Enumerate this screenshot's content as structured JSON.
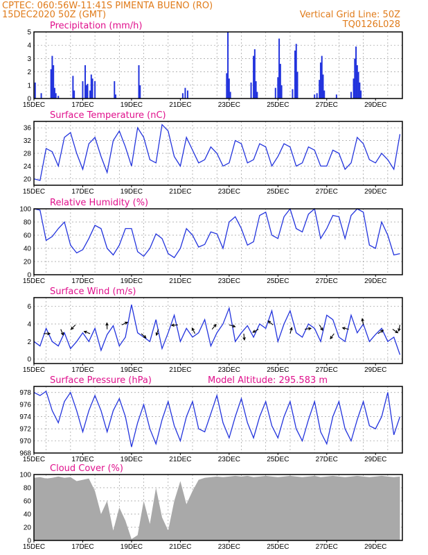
{
  "header": {
    "line1_left": "CPTEC:   060:56W-11:41S   PIMENTA BUENO (RO)",
    "line2_left": "15DEC2020 50Z (GMT)",
    "line2_right": "Vertical Grid Line: 50Z",
    "line3_right": "TQ0126L028"
  },
  "colors": {
    "header": "#e07b1a",
    "panel_title": "#e0108c",
    "series": "#2233dd",
    "cloud": "#a9a9a9"
  },
  "x_ticks": [
    "15DEC",
    "17DEC",
    "19DEC",
    "21DEC",
    "23DEC",
    "25DEC",
    "27DEC",
    "29DEC"
  ],
  "chart_data": [
    {
      "type": "bar",
      "title": "Precipitation (mm/h)",
      "ylim": [
        0,
        5
      ],
      "yticks": [
        0,
        1,
        2,
        3,
        4,
        5
      ],
      "x_days": [
        0,
        15.1
      ],
      "values": [
        [
          0.05,
          1.2
        ],
        [
          0.3,
          0.4
        ],
        [
          0.7,
          2.2
        ],
        [
          0.75,
          3.2
        ],
        [
          0.8,
          2.5
        ],
        [
          0.85,
          0.8
        ],
        [
          0.9,
          0.4
        ],
        [
          1.0,
          0.2
        ],
        [
          1.6,
          1.7
        ],
        [
          1.65,
          0.6
        ],
        [
          2.0,
          1.3
        ],
        [
          2.1,
          2.5
        ],
        [
          2.15,
          1.0
        ],
        [
          2.2,
          1.1
        ],
        [
          2.3,
          0.6
        ],
        [
          2.35,
          1.8
        ],
        [
          2.4,
          1.5
        ],
        [
          2.5,
          1.3
        ],
        [
          3.3,
          1.3
        ],
        [
          3.35,
          0.3
        ],
        [
          4.3,
          2.5
        ],
        [
          4.35,
          1.0
        ],
        [
          6.1,
          0.4
        ],
        [
          6.2,
          0.8
        ],
        [
          6.3,
          0.6
        ],
        [
          7.9,
          1.9
        ],
        [
          7.95,
          5.0
        ],
        [
          8.0,
          1.5
        ],
        [
          8.05,
          0.5
        ],
        [
          8.9,
          1.2
        ],
        [
          9.0,
          3.2
        ],
        [
          9.05,
          3.7
        ],
        [
          9.1,
          1.3
        ],
        [
          9.15,
          0.5
        ],
        [
          9.9,
          0.8
        ],
        [
          10.0,
          1.6
        ],
        [
          10.05,
          4.5
        ],
        [
          10.1,
          2.6
        ],
        [
          10.15,
          1.0
        ],
        [
          10.6,
          0.7
        ],
        [
          10.7,
          3.6
        ],
        [
          10.75,
          4.1
        ],
        [
          10.8,
          2.0
        ],
        [
          11.5,
          0.3
        ],
        [
          11.6,
          0.4
        ],
        [
          11.7,
          1.4
        ],
        [
          11.75,
          2.7
        ],
        [
          11.8,
          3.2
        ],
        [
          11.85,
          1.8
        ],
        [
          11.9,
          0.6
        ],
        [
          12.4,
          0.3
        ],
        [
          13.0,
          0.5
        ],
        [
          13.1,
          1.5
        ],
        [
          13.15,
          3.0
        ],
        [
          13.2,
          3.9
        ],
        [
          13.25,
          2.5
        ],
        [
          13.3,
          2.0
        ],
        [
          13.35,
          1.2
        ],
        [
          13.4,
          0.6
        ]
      ]
    },
    {
      "type": "line",
      "title": "Surface Temperature (nC)",
      "ylim": [
        18,
        38
      ],
      "yticks": [
        20,
        24,
        28,
        32,
        36
      ],
      "x": [
        0,
        0.25,
        0.5,
        0.75,
        1,
        1.25,
        1.5,
        1.75,
        2,
        2.25,
        2.5,
        2.75,
        3,
        3.25,
        3.5,
        3.75,
        4,
        4.25,
        4.5,
        4.75,
        5,
        5.25,
        5.5,
        5.75,
        6,
        6.25,
        6.5,
        6.75,
        7,
        7.25,
        7.5,
        7.75,
        8,
        8.25,
        8.5,
        8.75,
        9,
        9.25,
        9.5,
        9.75,
        10,
        10.25,
        10.5,
        10.75,
        11,
        11.25,
        11.5,
        11.75,
        12,
        12.25,
        12.5,
        12.75,
        13,
        13.25,
        13.5,
        13.75,
        14,
        14.25,
        14.5,
        14.75,
        15
      ],
      "values": [
        20,
        19.5,
        29.5,
        28.5,
        24,
        33,
        34.5,
        28,
        23,
        31,
        33,
        27,
        22,
        32,
        35,
        30,
        24,
        36,
        33,
        26,
        25,
        37,
        35,
        27,
        24,
        33,
        29,
        25,
        26,
        30,
        28,
        24,
        25,
        32,
        31,
        25,
        26,
        31,
        30,
        24,
        27,
        31,
        30,
        24,
        25,
        30,
        29,
        24,
        24,
        29,
        28,
        23,
        25,
        33,
        31,
        26,
        25,
        28,
        26,
        23,
        34
      ]
    },
    {
      "type": "line",
      "title": "Relative Humidity (%)",
      "ylim": [
        0,
        100
      ],
      "yticks": [
        0,
        20,
        40,
        60,
        80,
        100
      ],
      "x": [
        0,
        0.25,
        0.5,
        0.75,
        1,
        1.25,
        1.5,
        1.75,
        2,
        2.25,
        2.5,
        2.75,
        3,
        3.25,
        3.5,
        3.75,
        4,
        4.25,
        4.5,
        4.75,
        5,
        5.25,
        5.5,
        5.75,
        6,
        6.25,
        6.5,
        6.75,
        7,
        7.25,
        7.5,
        7.75,
        8,
        8.25,
        8.5,
        8.75,
        9,
        9.25,
        9.5,
        9.75,
        10,
        10.25,
        10.5,
        10.75,
        11,
        11.25,
        11.5,
        11.75,
        12,
        12.25,
        12.5,
        12.75,
        13,
        13.25,
        13.5,
        13.75,
        14,
        14.25,
        14.5,
        14.75,
        15
      ],
      "values": [
        100,
        98,
        52,
        58,
        70,
        80,
        45,
        33,
        38,
        55,
        75,
        70,
        40,
        30,
        45,
        70,
        70,
        35,
        28,
        40,
        62,
        55,
        32,
        26,
        40,
        70,
        60,
        42,
        46,
        65,
        62,
        40,
        80,
        88,
        70,
        45,
        50,
        90,
        95,
        60,
        55,
        88,
        100,
        70,
        65,
        92,
        100,
        55,
        70,
        90,
        88,
        55,
        90,
        100,
        95,
        45,
        40,
        80,
        60,
        30,
        32
      ]
    },
    {
      "type": "line",
      "title": "Surface Wind (m/s)",
      "ylim": [
        -0.5,
        7
      ],
      "yticks": [
        0,
        2,
        4,
        6
      ],
      "x": [
        0,
        0.25,
        0.5,
        0.75,
        1,
        1.25,
        1.5,
        1.75,
        2,
        2.25,
        2.5,
        2.75,
        3,
        3.25,
        3.5,
        3.75,
        4,
        4.25,
        4.5,
        4.75,
        5,
        5.25,
        5.5,
        5.75,
        6,
        6.25,
        6.5,
        6.75,
        7,
        7.25,
        7.5,
        7.75,
        8,
        8.25,
        8.5,
        8.75,
        9,
        9.25,
        9.5,
        9.75,
        10,
        10.25,
        10.5,
        10.75,
        11,
        11.25,
        11.5,
        11.75,
        12,
        12.25,
        12.5,
        12.75,
        13,
        13.25,
        13.5,
        13.75,
        14,
        14.25,
        14.5,
        14.75,
        15
      ],
      "values": [
        2,
        1.5,
        3.5,
        2,
        1.5,
        3,
        1.2,
        2,
        3,
        2,
        3.5,
        1,
        2.8,
        3.8,
        1.5,
        2.5,
        6.2,
        3,
        2.5,
        2,
        4.5,
        1.2,
        3,
        5,
        2,
        3.5,
        2.5,
        3,
        4.5,
        1.5,
        3,
        4,
        5.8,
        2,
        3,
        3.8,
        2.5,
        4,
        3.5,
        5.5,
        2,
        4,
        5.5,
        3,
        2.5,
        4,
        3.5,
        2,
        5,
        4.5,
        2.5,
        2,
        5,
        3,
        4,
        2,
        2.8,
        3.5,
        2,
        2.5,
        0.5
      ],
      "wind_arrows_days": [
        0.4,
        1.1,
        1.7,
        2.3,
        3.0,
        3.6,
        4.4,
        5.1,
        5.9,
        6.6,
        7.3,
        8.0,
        8.6,
        9.2,
        9.8,
        10.5,
        11.1,
        11.7,
        12.3,
        12.9,
        13.5,
        14.1,
        14.7,
        15.0
      ]
    },
    {
      "type": "line",
      "title": "Surface Pressure (hPa)",
      "annotation": "Model Altitude: 295.583  m",
      "ylim": [
        968,
        979
      ],
      "yticks": [
        968,
        970,
        972,
        974,
        976,
        978
      ],
      "x": [
        0,
        0.25,
        0.5,
        0.75,
        1,
        1.25,
        1.5,
        1.75,
        2,
        2.25,
        2.5,
        2.75,
        3,
        3.25,
        3.5,
        3.75,
        4,
        4.25,
        4.5,
        4.75,
        5,
        5.25,
        5.5,
        5.75,
        6,
        6.25,
        6.5,
        6.75,
        7,
        7.25,
        7.5,
        7.75,
        8,
        8.25,
        8.5,
        8.75,
        9,
        9.25,
        9.5,
        9.75,
        10,
        10.25,
        10.5,
        10.75,
        11,
        11.25,
        11.5,
        11.75,
        12,
        12.25,
        12.5,
        12.75,
        13,
        13.25,
        13.5,
        13.75,
        14,
        14.25,
        14.5,
        14.75,
        15
      ],
      "values": [
        978,
        977.5,
        978.2,
        975,
        973,
        976.5,
        978,
        975,
        971.5,
        975,
        977.5,
        975,
        971.5,
        975,
        977,
        974,
        969,
        973,
        976,
        972,
        969.5,
        973.5,
        976.5,
        972.5,
        970,
        974,
        976.5,
        972,
        971.5,
        974.5,
        977.5,
        973,
        970.5,
        974,
        977,
        973,
        970.5,
        974,
        976.5,
        972.5,
        970.5,
        974,
        976.5,
        972,
        970,
        973.5,
        976.5,
        971.5,
        969.5,
        974,
        976.5,
        972,
        970,
        973.5,
        976.5,
        972.5,
        972,
        974,
        978,
        971,
        974
      ]
    },
    {
      "type": "area",
      "title": "Cloud Cover (%)",
      "ylim": [
        0,
        100
      ],
      "yticks": [
        0,
        20,
        40,
        60,
        80,
        100
      ],
      "x": [
        0,
        0.25,
        0.5,
        0.75,
        1,
        1.25,
        1.5,
        1.75,
        2,
        2.25,
        2.5,
        2.75,
        3,
        3.25,
        3.5,
        3.75,
        4,
        4.25,
        4.5,
        4.75,
        5,
        5.25,
        5.5,
        5.75,
        6,
        6.25,
        6.5,
        6.75,
        7,
        7.25,
        7.5,
        7.75,
        8,
        8.25,
        8.5,
        8.75,
        9,
        9.25,
        9.5,
        9.75,
        10,
        10.25,
        10.5,
        10.75,
        11,
        11.25,
        11.5,
        11.75,
        12,
        12.25,
        12.5,
        12.75,
        13,
        13.25,
        13.5,
        13.75,
        14,
        14.25,
        14.5,
        14.75,
        15
      ],
      "values": [
        95,
        96,
        94,
        95,
        97,
        95,
        96,
        90,
        92,
        94,
        75,
        40,
        60,
        15,
        50,
        30,
        2,
        8,
        60,
        25,
        80,
        35,
        15,
        60,
        90,
        55,
        75,
        92,
        95,
        96,
        97,
        96,
        97,
        98,
        97,
        98,
        96,
        97,
        98,
        97,
        96,
        97,
        98,
        97,
        96,
        97,
        98,
        96,
        97,
        98,
        97,
        96,
        97,
        98,
        97,
        96,
        97,
        98,
        97,
        96,
        97
      ]
    }
  ]
}
